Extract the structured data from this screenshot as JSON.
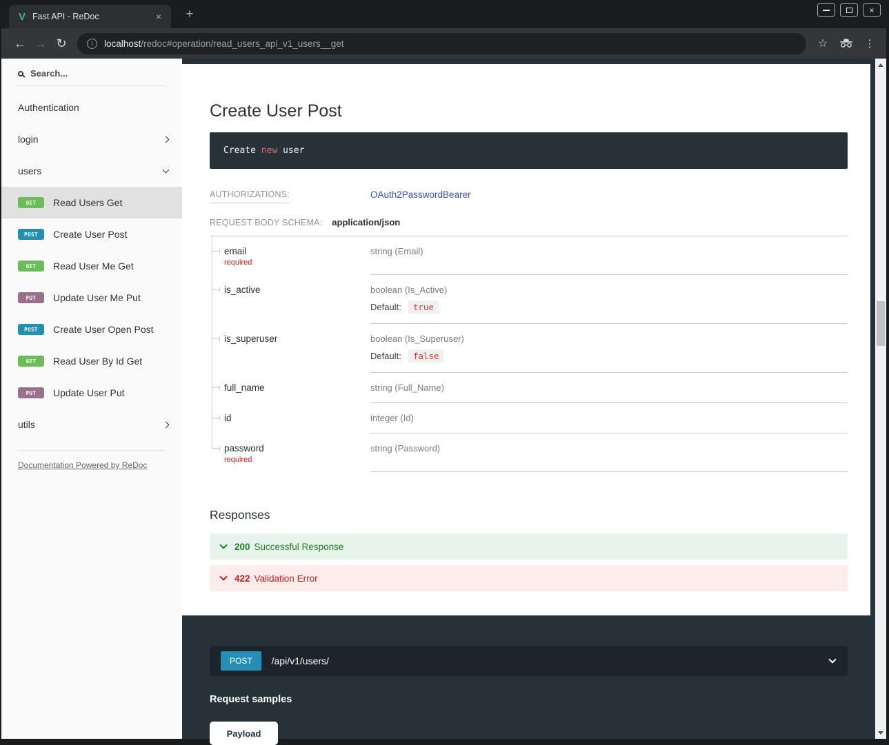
{
  "browser": {
    "tab_title": "Fast API - ReDoc",
    "url": {
      "host": "localhost",
      "rest": "/redoc#operation/read_users_api_v1_users__get"
    },
    "icons": {
      "back": "←",
      "forward": "→",
      "reload": "↻",
      "star": "☆",
      "menu": "⋮",
      "new_tab": "+",
      "tab_close": "×",
      "window_close": "×",
      "favicon_letter": "V"
    }
  },
  "sidebar": {
    "search_placeholder": "Search...",
    "items": [
      {
        "kind": "section",
        "label": "Authentication"
      },
      {
        "kind": "group",
        "label": "login",
        "chevron": "right"
      },
      {
        "kind": "group",
        "label": "users",
        "chevron": "down",
        "expanded": true
      },
      {
        "kind": "operation",
        "method": "GET",
        "label": "Read Users Get",
        "active": true
      },
      {
        "kind": "operation",
        "method": "POST",
        "label": "Create User Post"
      },
      {
        "kind": "operation",
        "method": "GET",
        "label": "Read User Me Get"
      },
      {
        "kind": "operation",
        "method": "PUT",
        "label": "Update User Me Put"
      },
      {
        "kind": "operation",
        "method": "POST",
        "label": "Create User Open Post"
      },
      {
        "kind": "operation",
        "method": "GET",
        "label": "Read User By Id Get"
      },
      {
        "kind": "operation",
        "method": "PUT",
        "label": "Update User Put"
      },
      {
        "kind": "group",
        "label": "utils",
        "chevron": "right"
      }
    ],
    "footer_link": "Documentation Powered by ReDoc"
  },
  "main": {
    "title": "Create User Post",
    "code": {
      "prefix": "Create ",
      "keyword": "new",
      "suffix": " user"
    },
    "authorizations": {
      "label": "AUTHORIZATIONS:",
      "value": "OAuth2PasswordBearer"
    },
    "request_body": {
      "label": "REQUEST BODY SCHEMA:",
      "value": "application/json"
    },
    "required_label": "required",
    "default_label": "Default:",
    "fields": [
      {
        "name": "email",
        "required": true,
        "type": "string (Email)"
      },
      {
        "name": "is_active",
        "type": "boolean (Is_Active)",
        "default": "true"
      },
      {
        "name": "is_superuser",
        "type": "boolean (Is_Superuser)",
        "default": "false"
      },
      {
        "name": "full_name",
        "type": "string (Full_Name)"
      },
      {
        "name": "id",
        "type": "integer (Id)"
      },
      {
        "name": "password",
        "required": true,
        "type": "string (Password)"
      }
    ],
    "responses": {
      "heading": "Responses",
      "items": [
        {
          "code": "200",
          "label": "Successful Response",
          "kind": "success"
        },
        {
          "code": "422",
          "label": "Validation Error",
          "kind": "error"
        }
      ]
    }
  },
  "request_panel": {
    "method": "POST",
    "path": "/api/v1/users/",
    "samples_heading": "Request samples",
    "tabs": [
      {
        "label": "Payload",
        "active": true
      }
    ]
  },
  "colors": {
    "method_get": "#6bbd5b",
    "method_post": "#248fb2",
    "method_put": "#9b708b",
    "success_text": "#1d8127",
    "success_bg": "#e6f4eb",
    "error_text": "#d41f1c",
    "error_bg": "#fdecec",
    "panel_dark": "#263238",
    "link": "#3f4ccc",
    "code_keyword": "#e06c75",
    "required": "#d41f1c"
  }
}
